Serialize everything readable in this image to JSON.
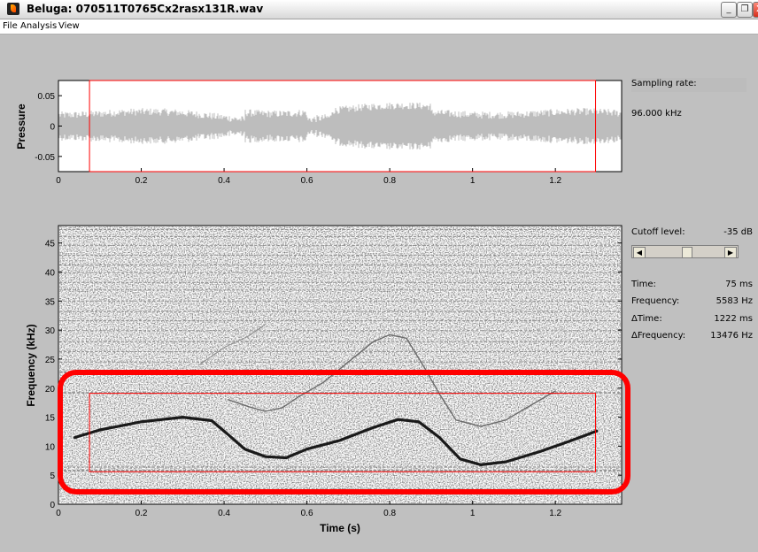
{
  "window": {
    "title": "Beluga: 070511T0765Cx2rasx131R.wav",
    "minimize_glyph": "_",
    "restore_glyph": "❐",
    "close_glyph": "X"
  },
  "menu": {
    "items": [
      "File",
      "Analysis",
      "View"
    ]
  },
  "waveform": {
    "ylabel": "Pressure",
    "y_ticks": [
      "0.05",
      "0",
      "-0.05"
    ],
    "x_ticks": [
      "0",
      "0.2",
      "0.4",
      "0.6",
      "0.8",
      "1",
      "1.2"
    ],
    "selection_time_s": [
      0.075,
      1.297
    ]
  },
  "spectrogram": {
    "ylabel": "Frequency (kHz)",
    "xlabel": "Time (s)",
    "y_ticks": [
      "0",
      "5",
      "10",
      "15",
      "20",
      "25",
      "30",
      "35",
      "40",
      "45"
    ],
    "x_ticks": [
      "0",
      "0.2",
      "0.4",
      "0.6",
      "0.8",
      "1",
      "1.2"
    ],
    "selection_box_khz": [
      5.6,
      19.1
    ],
    "highlight_color": "#ff0000"
  },
  "info": {
    "sampling_rate_label": "Sampling rate:",
    "sampling_rate_value": "96.000 kHz",
    "cutoff_label": "Cutoff level:",
    "cutoff_value": "-35 dB",
    "time_label": "Time:",
    "time_value": "75 ms",
    "frequency_label": "Frequency:",
    "frequency_value": "5583 Hz",
    "dtime_label": "ΔTime:",
    "dtime_value": "1222 ms",
    "dfrequency_label": "ΔFrequency:",
    "dfrequency_value": "13476 Hz",
    "slider_left_glyph": "◀",
    "slider_right_glyph": "▶"
  },
  "chart_data": [
    {
      "type": "line",
      "ylabel": "Pressure",
      "xlim": [
        0,
        1.36
      ],
      "ylim": [
        -0.075,
        0.075
      ],
      "x_ticks": [
        0,
        0.2,
        0.4,
        0.6,
        0.8,
        1,
        1.2
      ],
      "y_ticks": [
        -0.05,
        0,
        0.05
      ]
    },
    {
      "type": "heatmap",
      "xlabel": "Time (s)",
      "ylabel": "Frequency (kHz)",
      "xlim": [
        0,
        1.36
      ],
      "ylim": [
        0,
        48
      ],
      "x_ticks": [
        0,
        0.2,
        0.4,
        0.6,
        0.8,
        1,
        1.2
      ],
      "y_ticks": [
        0,
        5,
        10,
        15,
        20,
        25,
        30,
        35,
        40,
        45
      ],
      "selection": {
        "time_s": [
          0.075,
          1.297
        ],
        "freq_khz": [
          5.6,
          19.1
        ]
      }
    }
  ]
}
